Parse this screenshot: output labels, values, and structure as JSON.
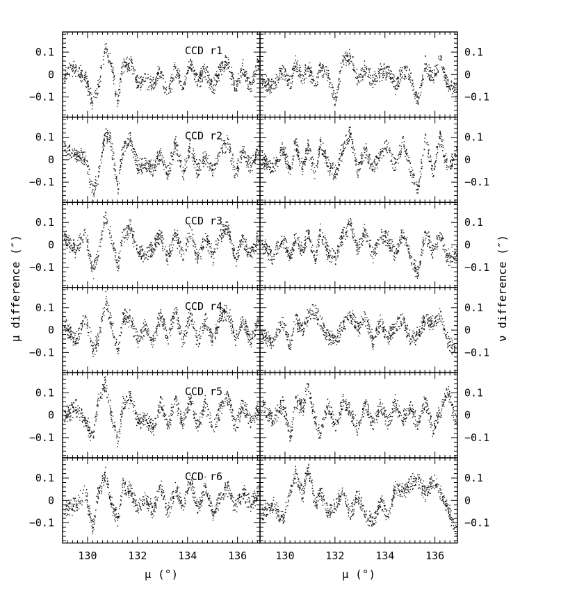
{
  "chart_data": {
    "type": "scatter",
    "layout": "6 rows x 2 columns of panels, shared x axes",
    "x_tick_labels": [
      "130",
      "132",
      "134",
      "136"
    ],
    "x_ticks": [
      130,
      132,
      134,
      136
    ],
    "xlim": [
      129,
      136.9
    ],
    "ylim": [
      -0.19,
      0.19
    ],
    "y_tick_labels": [
      "0.1",
      "0",
      "−0.1"
    ],
    "y_ticks": [
      0.1,
      0,
      -0.1
    ],
    "xlabel_left": "μ (°)",
    "xlabel_right": "μ (°)",
    "ylabel_left": "μ difference (″)",
    "ylabel_right": "ν difference (″)",
    "grid": false,
    "panels": [
      {
        "label": "CCD r1",
        "mu_diff": {
          "x": [
            129.1,
            129.5,
            129.9,
            130.2,
            130.4,
            130.7,
            130.9,
            131.2,
            131.4,
            131.7,
            132.0,
            132.3,
            132.6,
            132.9,
            133.2,
            133.5,
            133.8,
            134.1,
            134.4,
            134.7,
            135.0,
            135.3,
            135.6,
            135.9,
            136.2,
            136.5,
            136.8
          ],
          "y": [
            0.01,
            0.03,
            -0.01,
            -0.14,
            -0.05,
            0.12,
            0.06,
            -0.12,
            0.04,
            0.06,
            -0.04,
            -0.02,
            -0.05,
            0.02,
            -0.09,
            0.03,
            -0.05,
            0.05,
            -0.03,
            0.02,
            -0.06,
            0.03,
            0.06,
            -0.06,
            0.03,
            -0.06,
            0.05
          ]
        },
        "nu_diff": {
          "x": [
            129.1,
            129.5,
            129.9,
            130.2,
            130.4,
            130.7,
            130.9,
            131.2,
            131.4,
            131.7,
            132.0,
            132.3,
            132.6,
            132.9,
            133.2,
            133.5,
            133.8,
            134.1,
            134.4,
            134.7,
            135.0,
            135.3,
            135.6,
            135.9,
            136.2,
            136.5,
            136.8
          ],
          "y": [
            -0.03,
            -0.05,
            0.02,
            -0.04,
            0.05,
            -0.02,
            0.04,
            -0.06,
            0.04,
            0.0,
            -0.12,
            0.07,
            0.08,
            -0.02,
            0.03,
            -0.03,
            0.01,
            0.02,
            -0.05,
            0.02,
            0.0,
            -0.12,
            0.05,
            -0.02,
            0.08,
            -0.05,
            -0.07
          ]
        }
      },
      {
        "label": "CCD r2",
        "mu_diff": {
          "x": [
            129.1,
            129.5,
            129.9,
            130.2,
            130.4,
            130.7,
            130.9,
            131.2,
            131.4,
            131.7,
            132.0,
            132.3,
            132.6,
            132.9,
            133.2,
            133.5,
            133.8,
            134.1,
            134.4,
            134.7,
            135.0,
            135.3,
            135.6,
            135.9,
            136.2,
            136.5,
            136.8
          ],
          "y": [
            0.05,
            0.02,
            0.01,
            -0.15,
            -0.08,
            0.12,
            0.09,
            -0.12,
            0.05,
            0.09,
            -0.03,
            -0.02,
            -0.04,
            0.03,
            -0.06,
            0.08,
            -0.06,
            0.06,
            -0.05,
            0.02,
            -0.05,
            0.04,
            0.08,
            -0.06,
            0.04,
            -0.03,
            0.04
          ]
        },
        "nu_diff": {
          "x": [
            129.1,
            129.5,
            129.9,
            130.2,
            130.4,
            130.7,
            130.9,
            131.2,
            131.4,
            131.7,
            132.0,
            132.3,
            132.6,
            132.9,
            133.2,
            133.5,
            133.8,
            134.1,
            134.4,
            134.7,
            135.0,
            135.3,
            135.6,
            135.9,
            136.2,
            136.5,
            136.8
          ],
          "y": [
            0.0,
            -0.04,
            0.05,
            -0.05,
            0.08,
            -0.04,
            0.06,
            -0.07,
            0.07,
            -0.02,
            -0.06,
            0.05,
            0.12,
            -0.05,
            0.05,
            -0.04,
            0.03,
            0.06,
            -0.03,
            0.08,
            -0.04,
            -0.14,
            0.1,
            -0.05,
            0.11,
            -0.04,
            0.02
          ]
        }
      },
      {
        "label": "CCD r3",
        "mu_diff": {
          "x": [
            129.1,
            129.5,
            129.9,
            130.2,
            130.4,
            130.7,
            130.9,
            131.2,
            131.4,
            131.7,
            132.0,
            132.3,
            132.6,
            132.9,
            133.2,
            133.5,
            133.8,
            134.1,
            134.4,
            134.7,
            135.0,
            135.3,
            135.6,
            135.9,
            136.2,
            136.5,
            136.8
          ],
          "y": [
            0.03,
            -0.02,
            0.05,
            -0.12,
            -0.04,
            0.13,
            0.05,
            -0.1,
            0.05,
            0.08,
            -0.04,
            -0.03,
            -0.01,
            0.05,
            -0.06,
            0.05,
            -0.04,
            0.06,
            -0.06,
            0.04,
            -0.05,
            0.05,
            0.08,
            -0.07,
            0.03,
            -0.04,
            0.03
          ]
        },
        "nu_diff": {
          "x": [
            129.1,
            129.5,
            129.9,
            130.2,
            130.4,
            130.7,
            130.9,
            131.2,
            131.4,
            131.7,
            132.0,
            132.3,
            132.6,
            132.9,
            133.2,
            133.5,
            133.8,
            134.1,
            134.4,
            134.7,
            135.0,
            135.3,
            135.6,
            135.9,
            136.2,
            136.5,
            136.8
          ],
          "y": [
            0.0,
            -0.05,
            0.03,
            -0.06,
            0.04,
            -0.03,
            0.05,
            -0.06,
            0.06,
            -0.03,
            -0.05,
            0.04,
            0.1,
            -0.02,
            0.07,
            -0.05,
            0.05,
            0.03,
            -0.04,
            0.06,
            -0.05,
            -0.13,
            0.06,
            -0.03,
            0.05,
            -0.06,
            -0.04
          ]
        }
      },
      {
        "label": "CCD r4",
        "mu_diff": {
          "x": [
            129.1,
            129.5,
            129.9,
            130.2,
            130.4,
            130.7,
            130.9,
            131.2,
            131.4,
            131.7,
            132.0,
            132.3,
            132.6,
            132.9,
            133.2,
            133.5,
            133.8,
            134.1,
            134.4,
            134.7,
            135.0,
            135.3,
            135.6,
            135.9,
            136.2,
            136.5,
            136.8
          ],
          "y": [
            0.02,
            -0.05,
            0.06,
            -0.08,
            -0.05,
            0.14,
            0.05,
            -0.1,
            0.06,
            0.05,
            -0.04,
            0.02,
            -0.05,
            0.07,
            -0.03,
            0.09,
            -0.05,
            0.07,
            -0.05,
            0.04,
            -0.04,
            0.06,
            0.09,
            -0.05,
            0.05,
            -0.05,
            0.04
          ]
        },
        "nu_diff": {
          "x": [
            129.1,
            129.5,
            129.9,
            130.2,
            130.4,
            130.7,
            130.9,
            131.2,
            131.4,
            131.7,
            132.0,
            132.3,
            132.6,
            132.9,
            133.2,
            133.5,
            133.8,
            134.1,
            134.4,
            134.7,
            135.0,
            135.3,
            135.6,
            135.9,
            136.2,
            136.5,
            136.8
          ],
          "y": [
            -0.02,
            -0.06,
            0.04,
            -0.08,
            0.05,
            0.0,
            0.06,
            0.09,
            0.03,
            -0.02,
            -0.04,
            0.02,
            0.07,
            0.01,
            0.06,
            -0.05,
            0.04,
            -0.03,
            0.02,
            0.05,
            -0.04,
            -0.02,
            0.05,
            0.03,
            0.07,
            -0.05,
            -0.09
          ]
        }
      },
      {
        "label": "CCD r5",
        "mu_diff": {
          "x": [
            129.1,
            129.5,
            129.9,
            130.2,
            130.4,
            130.7,
            130.9,
            131.2,
            131.4,
            131.7,
            132.0,
            132.3,
            132.6,
            132.9,
            133.2,
            133.5,
            133.8,
            134.1,
            134.4,
            134.7,
            135.0,
            135.3,
            135.6,
            135.9,
            136.2,
            136.5,
            136.8
          ],
          "y": [
            0.0,
            0.04,
            -0.02,
            -0.1,
            0.06,
            0.15,
            0.02,
            -0.11,
            0.05,
            0.08,
            -0.03,
            -0.01,
            -0.06,
            0.06,
            -0.05,
            0.07,
            -0.04,
            0.08,
            -0.05,
            0.06,
            -0.06,
            0.03,
            0.08,
            -0.05,
            0.05,
            -0.02,
            0.03
          ]
        },
        "nu_diff": {
          "x": [
            129.1,
            129.5,
            129.9,
            130.2,
            130.4,
            130.7,
            130.9,
            131.2,
            131.4,
            131.7,
            132.0,
            132.3,
            132.6,
            132.9,
            133.2,
            133.5,
            133.8,
            134.1,
            134.4,
            134.7,
            135.0,
            135.3,
            135.6,
            135.9,
            136.2,
            136.5,
            136.8
          ],
          "y": [
            0.04,
            -0.02,
            0.05,
            -0.1,
            0.07,
            0.03,
            0.14,
            -0.03,
            -0.08,
            0.05,
            -0.05,
            0.06,
            0.02,
            -0.06,
            0.06,
            -0.05,
            0.05,
            -0.03,
            0.06,
            -0.02,
            0.04,
            -0.04,
            0.07,
            -0.06,
            0.02,
            0.12,
            -0.02
          ]
        }
      },
      {
        "label": "CCD r6",
        "mu_diff": {
          "x": [
            129.1,
            129.5,
            129.9,
            130.2,
            130.4,
            130.7,
            130.9,
            131.2,
            131.4,
            131.7,
            132.0,
            132.3,
            132.6,
            132.9,
            133.2,
            133.5,
            133.8,
            134.1,
            134.4,
            134.7,
            135.0,
            135.3,
            135.6,
            135.9,
            136.2,
            136.5,
            136.8
          ],
          "y": [
            -0.04,
            -0.02,
            0.04,
            -0.13,
            0.03,
            0.12,
            0.0,
            -0.09,
            0.07,
            0.04,
            -0.03,
            0.02,
            -0.05,
            0.07,
            -0.05,
            0.06,
            -0.02,
            0.09,
            -0.04,
            0.07,
            -0.06,
            0.02,
            0.06,
            -0.03,
            0.04,
            -0.02,
            0.03
          ]
        },
        "nu_diff": {
          "x": [
            129.1,
            129.5,
            129.9,
            130.2,
            130.4,
            130.7,
            130.9,
            131.2,
            131.4,
            131.7,
            132.0,
            132.3,
            132.6,
            132.9,
            133.2,
            133.5,
            133.8,
            134.1,
            134.4,
            134.7,
            135.0,
            135.3,
            135.6,
            135.9,
            136.2,
            136.5,
            136.8
          ],
          "y": [
            -0.06,
            -0.02,
            -0.08,
            0.04,
            0.12,
            0.02,
            0.16,
            -0.03,
            0.05,
            -0.05,
            -0.02,
            0.04,
            -0.06,
            0.02,
            -0.06,
            -0.1,
            0.0,
            -0.07,
            0.06,
            0.04,
            0.08,
            0.1,
            0.03,
            0.09,
            0.04,
            -0.03,
            -0.13
          ]
        }
      }
    ]
  }
}
